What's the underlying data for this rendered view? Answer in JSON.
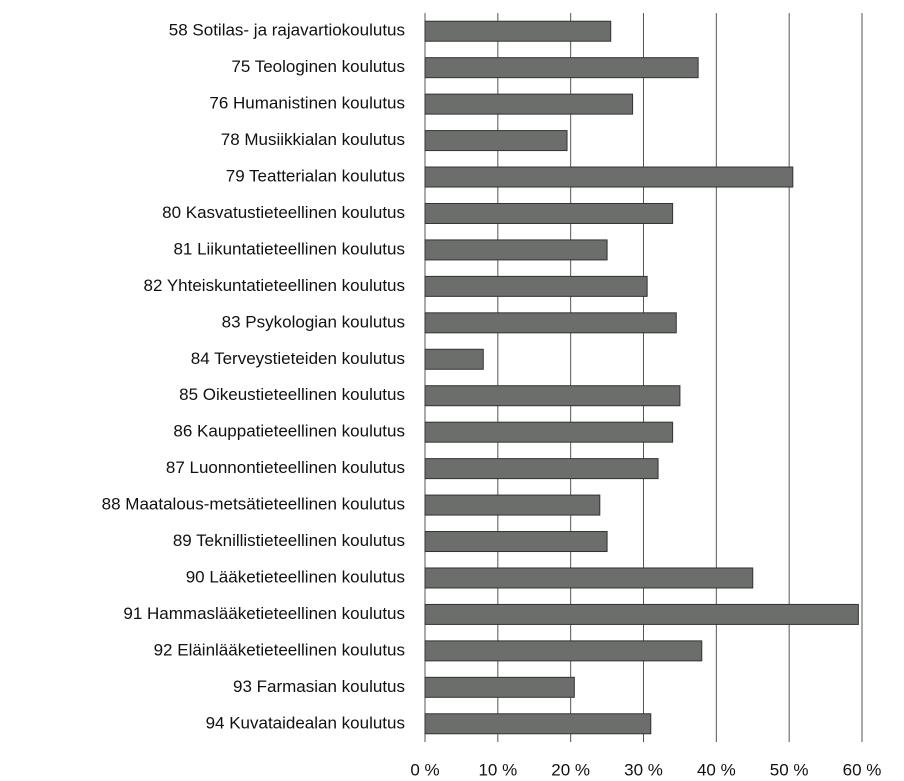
{
  "chart_data": {
    "type": "bar",
    "orientation": "horizontal",
    "categories": [
      "58 Sotilas- ja rajavartiokoulutus",
      "75 Teologinen koulutus",
      "76 Humanistinen koulutus",
      "78 Musiikkialan koulutus",
      "79 Teatterialan koulutus",
      "80 Kasvatustieteellinen koulutus",
      "81 Liikuntatieteellinen koulutus",
      "82 Yhteiskuntatieteellinen koulutus",
      "83 Psykologian koulutus",
      "84 Terveystieteiden koulutus",
      "85 Oikeustieteellinen koulutus",
      "86 Kauppatieteellinen koulutus",
      "87 Luonnontieteellinen koulutus",
      "88 Maatalous-metsätieteellinen koulutus",
      "89 Teknillistieteellinen koulutus",
      "90 Lääketieteellinen koulutus",
      "91 Hammaslääketieteellinen koulutus",
      "92 Eläinlääketieteellinen koulutus",
      "93 Farmasian koulutus",
      "94 Kuvataidealan koulutus"
    ],
    "values": [
      25.5,
      37.5,
      28.5,
      19.5,
      50.5,
      34,
      25,
      30.5,
      34.5,
      8,
      35,
      34,
      32,
      24,
      25,
      45,
      59.5,
      38,
      20.5,
      31
    ],
    "color": "#6b6e6b",
    "xlim": [
      0,
      60
    ],
    "xticks": [
      {
        "value": 0,
        "label": "0 %"
      },
      {
        "value": 10,
        "label": "10 %"
      },
      {
        "value": 20,
        "label": "20 %"
      },
      {
        "value": 30,
        "label": "30 %"
      },
      {
        "value": 40,
        "label": "40 %"
      },
      {
        "value": 50,
        "label": "50 %"
      },
      {
        "value": 60,
        "label": "60 %"
      }
    ],
    "grid": true
  }
}
